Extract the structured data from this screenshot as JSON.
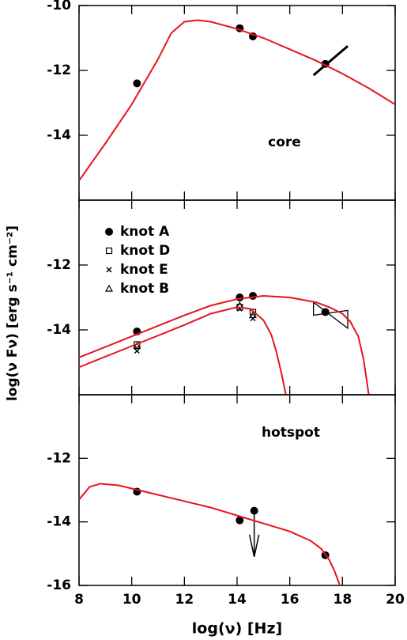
{
  "chart_data": [
    {
      "type": "scatter",
      "annotation": "core",
      "xlim": [
        8,
        20
      ],
      "xticks": [
        8,
        10,
        12,
        14,
        16,
        18,
        20
      ],
      "ylim": [
        -16,
        -10
      ],
      "yticks": [
        -10,
        -12,
        -14
      ],
      "series": [
        {
          "marker": "circle",
          "color": "#000000",
          "x": [
            10.2,
            14.1,
            14.6,
            17.35
          ],
          "values": [
            -12.4,
            -10.7,
            -10.95,
            -11.8
          ]
        },
        {
          "marker": "segment",
          "color": "#000000",
          "x": [
            16.9,
            18.2
          ],
          "values": [
            -12.15,
            -11.25
          ]
        },
        {
          "marker": "line",
          "color": "#e8141c",
          "x": [
            8,
            9,
            10,
            11,
            11.5,
            12,
            12.5,
            13,
            14,
            15,
            16,
            17,
            18,
            19,
            20
          ],
          "values": [
            -15.4,
            -14.25,
            -13.05,
            -11.65,
            -10.85,
            -10.5,
            -10.45,
            -10.5,
            -10.72,
            -11.0,
            -11.35,
            -11.7,
            -12.1,
            -12.55,
            -13.05
          ]
        }
      ]
    },
    {
      "type": "scatter",
      "ylabel": "log(ν Fν) [erg s⁻¹ cm⁻²]",
      "xlim": [
        8,
        20
      ],
      "xticks": [
        8,
        10,
        12,
        14,
        16,
        18,
        20
      ],
      "ylim": [
        -16,
        -10
      ],
      "yticks": [
        -12,
        -14
      ],
      "series": [
        {
          "name": "knot A",
          "marker": "circle",
          "color": "#000000",
          "x": [
            10.2,
            14.1,
            14.6,
            17.35
          ],
          "values": [
            -14.05,
            -13.0,
            -12.95,
            -13.45
          ]
        },
        {
          "name": "knot D",
          "marker": "square",
          "color": "#000000",
          "x": [
            10.2,
            14.1,
            14.6
          ],
          "values": [
            -14.45,
            -13.3,
            -13.45
          ]
        },
        {
          "name": "knot E",
          "marker": "cross",
          "color": "#000000",
          "x": [
            10.2,
            14.1,
            14.6
          ],
          "values": [
            -14.65,
            -13.35,
            -13.65
          ]
        },
        {
          "name": "knot B",
          "marker": "triangle",
          "color": "#000000",
          "x": [
            10.2,
            14.1,
            14.6
          ],
          "values": [
            -14.5,
            -13.25,
            -13.55
          ]
        },
        {
          "marker": "polygon",
          "color": "#000000",
          "x": [
            16.9,
            18.2,
            18.2,
            16.9
          ],
          "values": [
            -13.15,
            -13.95,
            -13.4,
            -13.55
          ]
        },
        {
          "marker": "line",
          "color": "#e8141c",
          "x": [
            8,
            10,
            12,
            13,
            14,
            15,
            16,
            17,
            17.5,
            18,
            18.3,
            18.6,
            18.8,
            19
          ],
          "values": [
            -14.85,
            -14.2,
            -13.55,
            -13.25,
            -13.05,
            -12.95,
            -13.0,
            -13.15,
            -13.3,
            -13.5,
            -13.75,
            -14.2,
            -14.9,
            -16
          ]
        },
        {
          "marker": "line",
          "color": "#e8141c",
          "x": [
            8,
            10,
            12,
            13,
            14,
            14.5,
            15,
            15.3,
            15.5,
            15.7,
            15.85
          ],
          "values": [
            -15.15,
            -14.5,
            -13.85,
            -13.5,
            -13.3,
            -13.35,
            -13.7,
            -14.15,
            -14.7,
            -15.4,
            -16
          ]
        }
      ]
    },
    {
      "type": "scatter",
      "annotation": "hotspot",
      "xlabel": "log(ν) [Hz]",
      "xlim": [
        8,
        20
      ],
      "xticks": [
        8,
        10,
        12,
        14,
        16,
        18,
        20
      ],
      "ylim": [
        -16,
        -10
      ],
      "yticks": [
        -12,
        -14,
        -16
      ],
      "series": [
        {
          "marker": "circle",
          "color": "#000000",
          "x": [
            10.2,
            14.1,
            17.35
          ],
          "values": [
            -13.05,
            -13.95,
            -15.05
          ]
        },
        {
          "marker": "upper-limit",
          "color": "#000000",
          "x": [
            14.65
          ],
          "values": [
            -13.65
          ],
          "arrow_to": [
            -15.1
          ]
        },
        {
          "marker": "line",
          "color": "#e8141c",
          "x": [
            8,
            8.4,
            8.8,
            9.5,
            10,
            11,
            12,
            13,
            14,
            15,
            16,
            16.8,
            17.2,
            17.5,
            17.7,
            17.9
          ],
          "values": [
            -13.3,
            -12.9,
            -12.8,
            -12.85,
            -12.95,
            -13.15,
            -13.35,
            -13.55,
            -13.8,
            -14.05,
            -14.3,
            -14.6,
            -14.85,
            -15.2,
            -15.55,
            -16
          ]
        }
      ]
    }
  ]
}
